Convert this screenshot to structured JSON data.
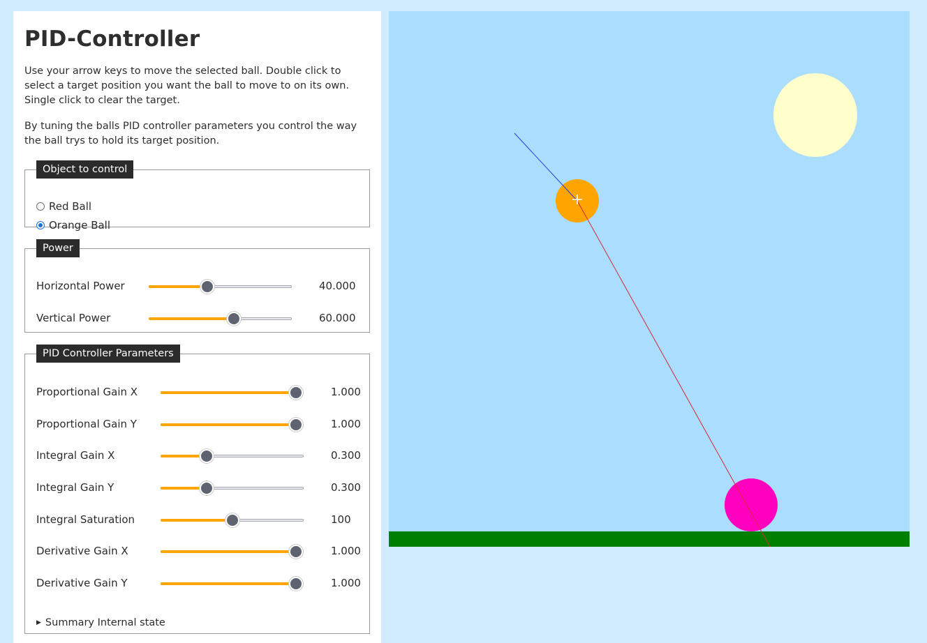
{
  "title": "PID-Controller",
  "intro": [
    "Use your arrow keys to move the selected ball. Double click to select a target position you want the ball to move to on its own. Single click to clear the target.",
    "By tuning the balls PID controller parameters you control the way the ball trys to hold its target position."
  ],
  "object_control": {
    "legend": "Object to control",
    "options": [
      {
        "label": "Red Ball",
        "checked": false
      },
      {
        "label": "Orange Ball",
        "checked": true
      }
    ]
  },
  "power": {
    "legend": "Power",
    "sliders": [
      {
        "label": "Horizontal Power",
        "value": "40.000",
        "fraction": 0.41
      },
      {
        "label": "Vertical Power",
        "value": "60.000",
        "fraction": 0.595
      }
    ]
  },
  "pid": {
    "legend": "PID Controller Parameters",
    "sliders": [
      {
        "label": "Proportional Gain X",
        "value": "1.000",
        "fraction": 0.95
      },
      {
        "label": "Proportional Gain Y",
        "value": "1.000",
        "fraction": 0.95
      },
      {
        "label": "Integral Gain X",
        "value": "0.300",
        "fraction": 0.32
      },
      {
        "label": "Integral Gain Y",
        "value": "0.300",
        "fraction": 0.32
      },
      {
        "label": "Integral Saturation",
        "value": "100",
        "fraction": 0.5
      },
      {
        "label": "Derivative Gain X",
        "value": "1.000",
        "fraction": 0.95
      },
      {
        "label": "Derivative Gain Y",
        "value": "1.000",
        "fraction": 0.95
      }
    ]
  },
  "summary_label": "Summary Internal state",
  "scene": {
    "sky_color": "#abddfe",
    "ground_color": "#008000",
    "sun_color": "#ffffcc",
    "orange_ball_color": "#ffa500",
    "magenta_ball_color": "#ff00bf",
    "velocity_line_color": "#1f3fe6",
    "target_line_color": "#d6283c"
  }
}
